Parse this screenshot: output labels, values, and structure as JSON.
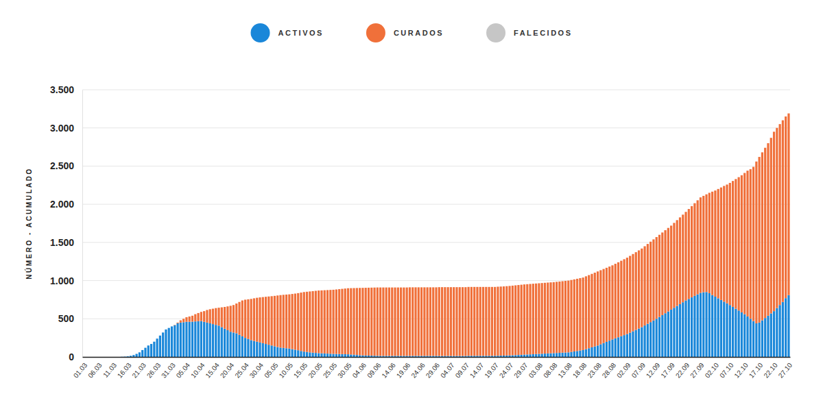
{
  "chart_data": {
    "type": "bar",
    "stacked": true,
    "grid": true,
    "legend": "top",
    "y_label": "NÚMERO - ACUMULADO",
    "ylim": [
      0,
      3500
    ],
    "yticks": [
      0,
      500,
      {
        "value": 1000,
        "label": "1.000"
      },
      {
        "value": 1500,
        "label": "1.500"
      },
      {
        "value": 2000,
        "label": "2.000"
      },
      {
        "value": 2500,
        "label": "2.500"
      },
      {
        "value": 3000,
        "label": "3.000"
      },
      {
        "value": 3500,
        "label": "3.500"
      }
    ],
    "categories": [
      "01.03",
      null,
      null,
      null,
      null,
      "06.03",
      null,
      null,
      null,
      null,
      "11.03",
      null,
      null,
      null,
      null,
      "16.03",
      null,
      null,
      null,
      null,
      "21.03",
      null,
      null,
      null,
      null,
      "26.03",
      null,
      null,
      null,
      null,
      "31.03",
      null,
      null,
      null,
      null,
      "05.04",
      null,
      null,
      null,
      null,
      "10.04",
      null,
      null,
      null,
      null,
      "15.04",
      null,
      null,
      null,
      null,
      "20.04",
      null,
      null,
      null,
      null,
      "25.04",
      null,
      null,
      null,
      null,
      "30.04",
      null,
      null,
      null,
      null,
      "05.05",
      null,
      null,
      null,
      null,
      "10.05",
      null,
      null,
      null,
      null,
      "15.05",
      null,
      null,
      null,
      null,
      "20.05",
      null,
      null,
      null,
      null,
      "25.05",
      null,
      null,
      null,
      null,
      "30.05",
      null,
      null,
      null,
      null,
      "04.06",
      null,
      null,
      null,
      null,
      "09.06",
      null,
      null,
      null,
      null,
      "14.06",
      null,
      null,
      null,
      null,
      "19.06",
      null,
      null,
      null,
      null,
      "24.06",
      null,
      null,
      null,
      null,
      "29.06",
      null,
      null,
      null,
      null,
      "04.07",
      null,
      null,
      null,
      null,
      "09.07",
      null,
      null,
      null,
      null,
      "14.07",
      null,
      null,
      null,
      null,
      "19.07",
      null,
      null,
      null,
      null,
      "24.07",
      null,
      null,
      null,
      null,
      "29.07",
      null,
      null,
      null,
      null,
      "03.08",
      null,
      null,
      null,
      null,
      "08.08",
      null,
      null,
      null,
      null,
      "13.08",
      null,
      null,
      null,
      null,
      "18.08",
      null,
      null,
      null,
      null,
      "23.08",
      null,
      null,
      null,
      null,
      "28.08",
      null,
      null,
      null,
      null,
      "02.09",
      null,
      null,
      null,
      null,
      "07.09",
      null,
      null,
      null,
      null,
      "12.09",
      null,
      null,
      null,
      null,
      "17.09",
      null,
      null,
      null,
      null,
      "22.09",
      null,
      null,
      null,
      null,
      "27.09",
      null,
      null,
      null,
      null,
      "02.10",
      null,
      null,
      null,
      null,
      "07.10",
      null,
      null,
      null,
      null,
      "12.10",
      null,
      null,
      null,
      null,
      "17.10",
      null,
      null,
      null,
      null,
      "22.10",
      null,
      null,
      null,
      null,
      "27.10"
    ],
    "series": [
      {
        "name": "ACTIVOS",
        "color": "#1a87d9",
        "values": [
          0,
          0,
          0,
          0,
          0,
          0,
          0,
          0,
          0,
          0,
          0,
          0,
          0,
          2,
          4,
          8,
          15,
          25,
          40,
          60,
          90,
          120,
          150,
          170,
          200,
          240,
          280,
          320,
          360,
          380,
          400,
          415,
          440,
          450,
          455,
          460,
          460,
          462,
          465,
          468,
          470,
          460,
          450,
          440,
          430,
          420,
          410,
          390,
          370,
          350,
          330,
          320,
          310,
          290,
          270,
          250,
          235,
          220,
          210,
          200,
          190,
          180,
          170,
          160,
          150,
          140,
          130,
          122,
          118,
          114,
          110,
          102,
          95,
          88,
          78,
          70,
          65,
          60,
          56,
          53,
          50,
          48,
          46,
          44,
          42,
          40,
          39,
          38,
          37,
          36,
          35,
          32,
          29,
          26,
          23,
          20,
          19,
          18,
          17,
          16,
          15,
          14,
          14,
          14,
          14,
          14,
          14,
          14,
          14,
          14,
          14,
          14,
          14,
          14,
          14,
          14,
          14,
          14,
          14,
          14,
          14,
          13,
          13,
          13,
          13,
          13,
          13,
          13,
          13,
          13,
          13,
          15,
          15,
          15,
          15,
          15,
          15,
          15,
          15,
          15,
          15,
          16,
          17,
          18,
          19,
          20,
          22,
          24,
          26,
          28,
          30,
          32,
          34,
          36,
          38,
          40,
          42,
          44,
          46,
          48,
          50,
          52,
          54,
          56,
          58,
          60,
          66,
          72,
          78,
          84,
          90,
          102,
          114,
          126,
          138,
          150,
          166,
          182,
          198,
          214,
          230,
          244,
          258,
          272,
          286,
          300,
          318,
          336,
          354,
          372,
          390,
          412,
          434,
          456,
          478,
          500,
          524,
          548,
          572,
          596,
          620,
          644,
          668,
          692,
          716,
          740,
          760,
          780,
          800,
          820,
          840,
          848,
          850,
          835,
          810,
          790,
          768,
          746,
          724,
          702,
          680,
          656,
          632,
          608,
          584,
          560,
          530,
          500,
          470,
          440,
          450,
          480,
          510,
          540,
          570,
          600,
          640,
          680,
          720,
          770,
          810
        ]
      },
      {
        "name": "CURADOS",
        "color": "#f0703a",
        "values": [
          0,
          0,
          0,
          0,
          0,
          0,
          0,
          0,
          0,
          0,
          0,
          0,
          0,
          0,
          0,
          0,
          0,
          0,
          0,
          0,
          0,
          0,
          0,
          0,
          0,
          0,
          0,
          0,
          0,
          0,
          0,
          5,
          10,
          30,
          45,
          60,
          70,
          78,
          95,
          107,
          120,
          140,
          165,
          185,
          202,
          220,
          235,
          260,
          285,
          312,
          340,
          360,
          390,
          430,
          470,
          500,
          520,
          540,
          558,
          575,
          590,
          604,
          618,
          632,
          646,
          660,
          675,
          688,
          696,
          703,
          710,
          723,
          735,
          748,
          765,
          780,
          789,
          798,
          806,
          813,
          820,
          824,
          828,
          832,
          836,
          840,
          845,
          850,
          855,
          860,
          865,
          869,
          873,
          877,
          881,
          885,
          887,
          889,
          891,
          893,
          895,
          896,
          896,
          896,
          896,
          896,
          896,
          896,
          896,
          896,
          896,
          898,
          898,
          898,
          898,
          898,
          898,
          898,
          898,
          898,
          898,
          901,
          901,
          901,
          901,
          901,
          901,
          901,
          901,
          901,
          901,
          902,
          902,
          902,
          902,
          902,
          902,
          902,
          902,
          902,
          902,
          904,
          905,
          906,
          908,
          910,
          912,
          914,
          916,
          918,
          920,
          921,
          922,
          923,
          924,
          925,
          926,
          927,
          928,
          929,
          930,
          932,
          934,
          936,
          938,
          940,
          942,
          944,
          946,
          948,
          950,
          954,
          958,
          962,
          966,
          970,
          970,
          970,
          970,
          970,
          970,
          976,
          982,
          988,
          994,
          1000,
          1006,
          1012,
          1018,
          1024,
          1030,
          1038,
          1046,
          1054,
          1062,
          1070,
          1076,
          1082,
          1088,
          1094,
          1100,
          1112,
          1124,
          1136,
          1148,
          1160,
          1178,
          1196,
          1214,
          1232,
          1250,
          1262,
          1280,
          1315,
          1355,
          1390,
          1432,
          1474,
          1516,
          1556,
          1600,
          1649,
          1698,
          1747,
          1796,
          1850,
          1910,
          1960,
          2020,
          2120,
          2170,
          2200,
          2230,
          2260,
          2300,
          2350,
          2360,
          2370,
          2380,
          2380,
          2380
        ]
      },
      {
        "name": "FALECIDOS",
        "color": "#c6c6c6",
        "values": [
          0,
          0,
          0,
          0,
          0,
          0,
          0,
          0,
          0,
          0,
          0,
          0,
          0,
          0,
          0,
          0,
          0,
          0,
          0,
          0,
          0,
          0,
          0,
          0,
          0,
          0,
          0,
          0,
          0,
          0,
          0,
          0,
          0,
          0,
          0,
          0,
          0,
          0,
          0,
          0,
          0,
          0,
          0,
          0,
          0,
          0,
          0,
          0,
          0,
          0,
          0,
          0,
          0,
          0,
          0,
          0,
          0,
          0,
          0,
          0,
          0,
          0,
          0,
          0,
          0,
          0,
          0,
          0,
          0,
          0,
          0,
          0,
          0,
          0,
          0,
          0,
          0,
          0,
          0,
          0,
          0,
          0,
          0,
          0,
          0,
          0,
          0,
          0,
          0,
          0,
          0,
          0,
          0,
          0,
          0,
          0,
          0,
          0,
          0,
          0,
          0,
          0,
          0,
          0,
          0,
          0,
          0,
          0,
          0,
          0,
          0,
          0,
          0,
          0,
          0,
          0,
          0,
          0,
          0,
          0,
          0,
          0,
          0,
          0,
          0,
          0,
          0,
          0,
          0,
          0,
          0,
          0,
          0,
          0,
          0,
          0,
          0,
          0,
          0,
          0,
          0,
          0,
          0,
          0,
          0,
          0,
          0,
          0,
          0,
          0,
          0,
          0,
          0,
          0,
          0,
          0,
          0,
          0,
          0,
          0,
          0,
          0,
          0,
          0,
          0,
          0,
          0,
          0,
          0,
          0,
          0,
          0,
          0,
          0,
          0,
          0,
          0,
          0,
          0,
          0,
          0,
          0,
          0,
          0,
          0,
          0,
          0,
          0,
          0,
          0,
          0,
          0,
          0,
          0,
          0,
          0,
          0,
          0,
          0,
          0,
          0,
          0,
          0,
          0,
          0,
          0,
          0,
          0,
          0,
          0,
          0,
          0,
          0,
          0,
          0,
          0,
          0,
          0,
          0,
          0,
          0,
          0,
          0,
          0,
          0,
          0,
          0,
          0,
          0,
          0,
          0,
          0,
          0,
          0,
          0,
          0,
          0,
          0,
          0,
          0,
          0
        ]
      }
    ]
  }
}
